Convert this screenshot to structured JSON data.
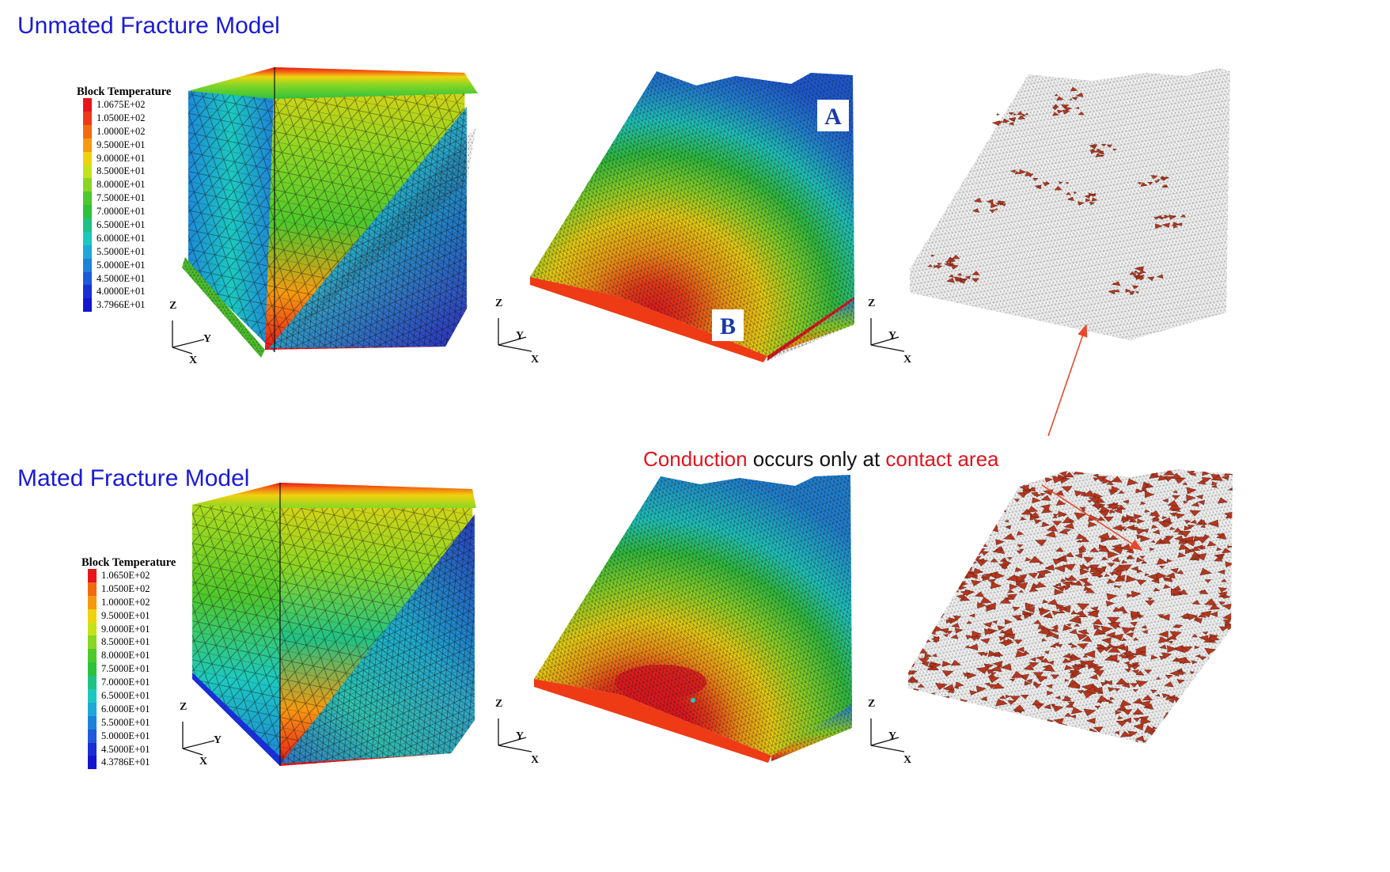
{
  "titles": {
    "unmated": "Unmated Fracture Model",
    "mated": "Mated Fracture Model"
  },
  "legends": {
    "unmated": {
      "title": "Block  Temperature",
      "levels": [
        "1.0675E+02",
        "1.0500E+02",
        "1.0000E+02",
        "9.5000E+01",
        "9.0000E+01",
        "8.5000E+01",
        "8.0000E+01",
        "7.5000E+01",
        "7.0000E+01",
        "6.5000E+01",
        "6.0000E+01",
        "5.5000E+01",
        "5.0000E+01",
        "4.5000E+01",
        "4.0000E+01",
        "3.7966E+01"
      ]
    },
    "mated": {
      "title": "Block  Temperature",
      "levels": [
        "1.0650E+02",
        "1.0500E+02",
        "1.0000E+02",
        "9.5000E+01",
        "9.0000E+01",
        "8.5000E+01",
        "8.0000E+01",
        "7.5000E+01",
        "7.0000E+01",
        "6.5000E+01",
        "6.0000E+01",
        "5.5000E+01",
        "5.0000E+01",
        "4.5000E+01",
        "4.3786E+01"
      ]
    },
    "colors": [
      "#e8141c",
      "#ef3a16",
      "#f26a12",
      "#f59a10",
      "#efd20e",
      "#c6e21a",
      "#8ad624",
      "#4ec82c",
      "#2ec23c",
      "#20c284",
      "#1cc8c0",
      "#1ea8d8",
      "#1e82d8",
      "#1c5ad8",
      "#1a2ed6",
      "#1414d0"
    ]
  },
  "axes": {
    "z": "Z",
    "y": "Y",
    "x": "X"
  },
  "markers": {
    "a": "A",
    "b": "B"
  },
  "annotation": {
    "part1": "Conduction",
    "part2": " occurs only at ",
    "part3": "contact area"
  },
  "colors": {
    "title_blue": "#1a1ad6",
    "highlight_red": "#e0141e",
    "contact_patch": "#b5361e",
    "arrow": "#e8482c"
  }
}
